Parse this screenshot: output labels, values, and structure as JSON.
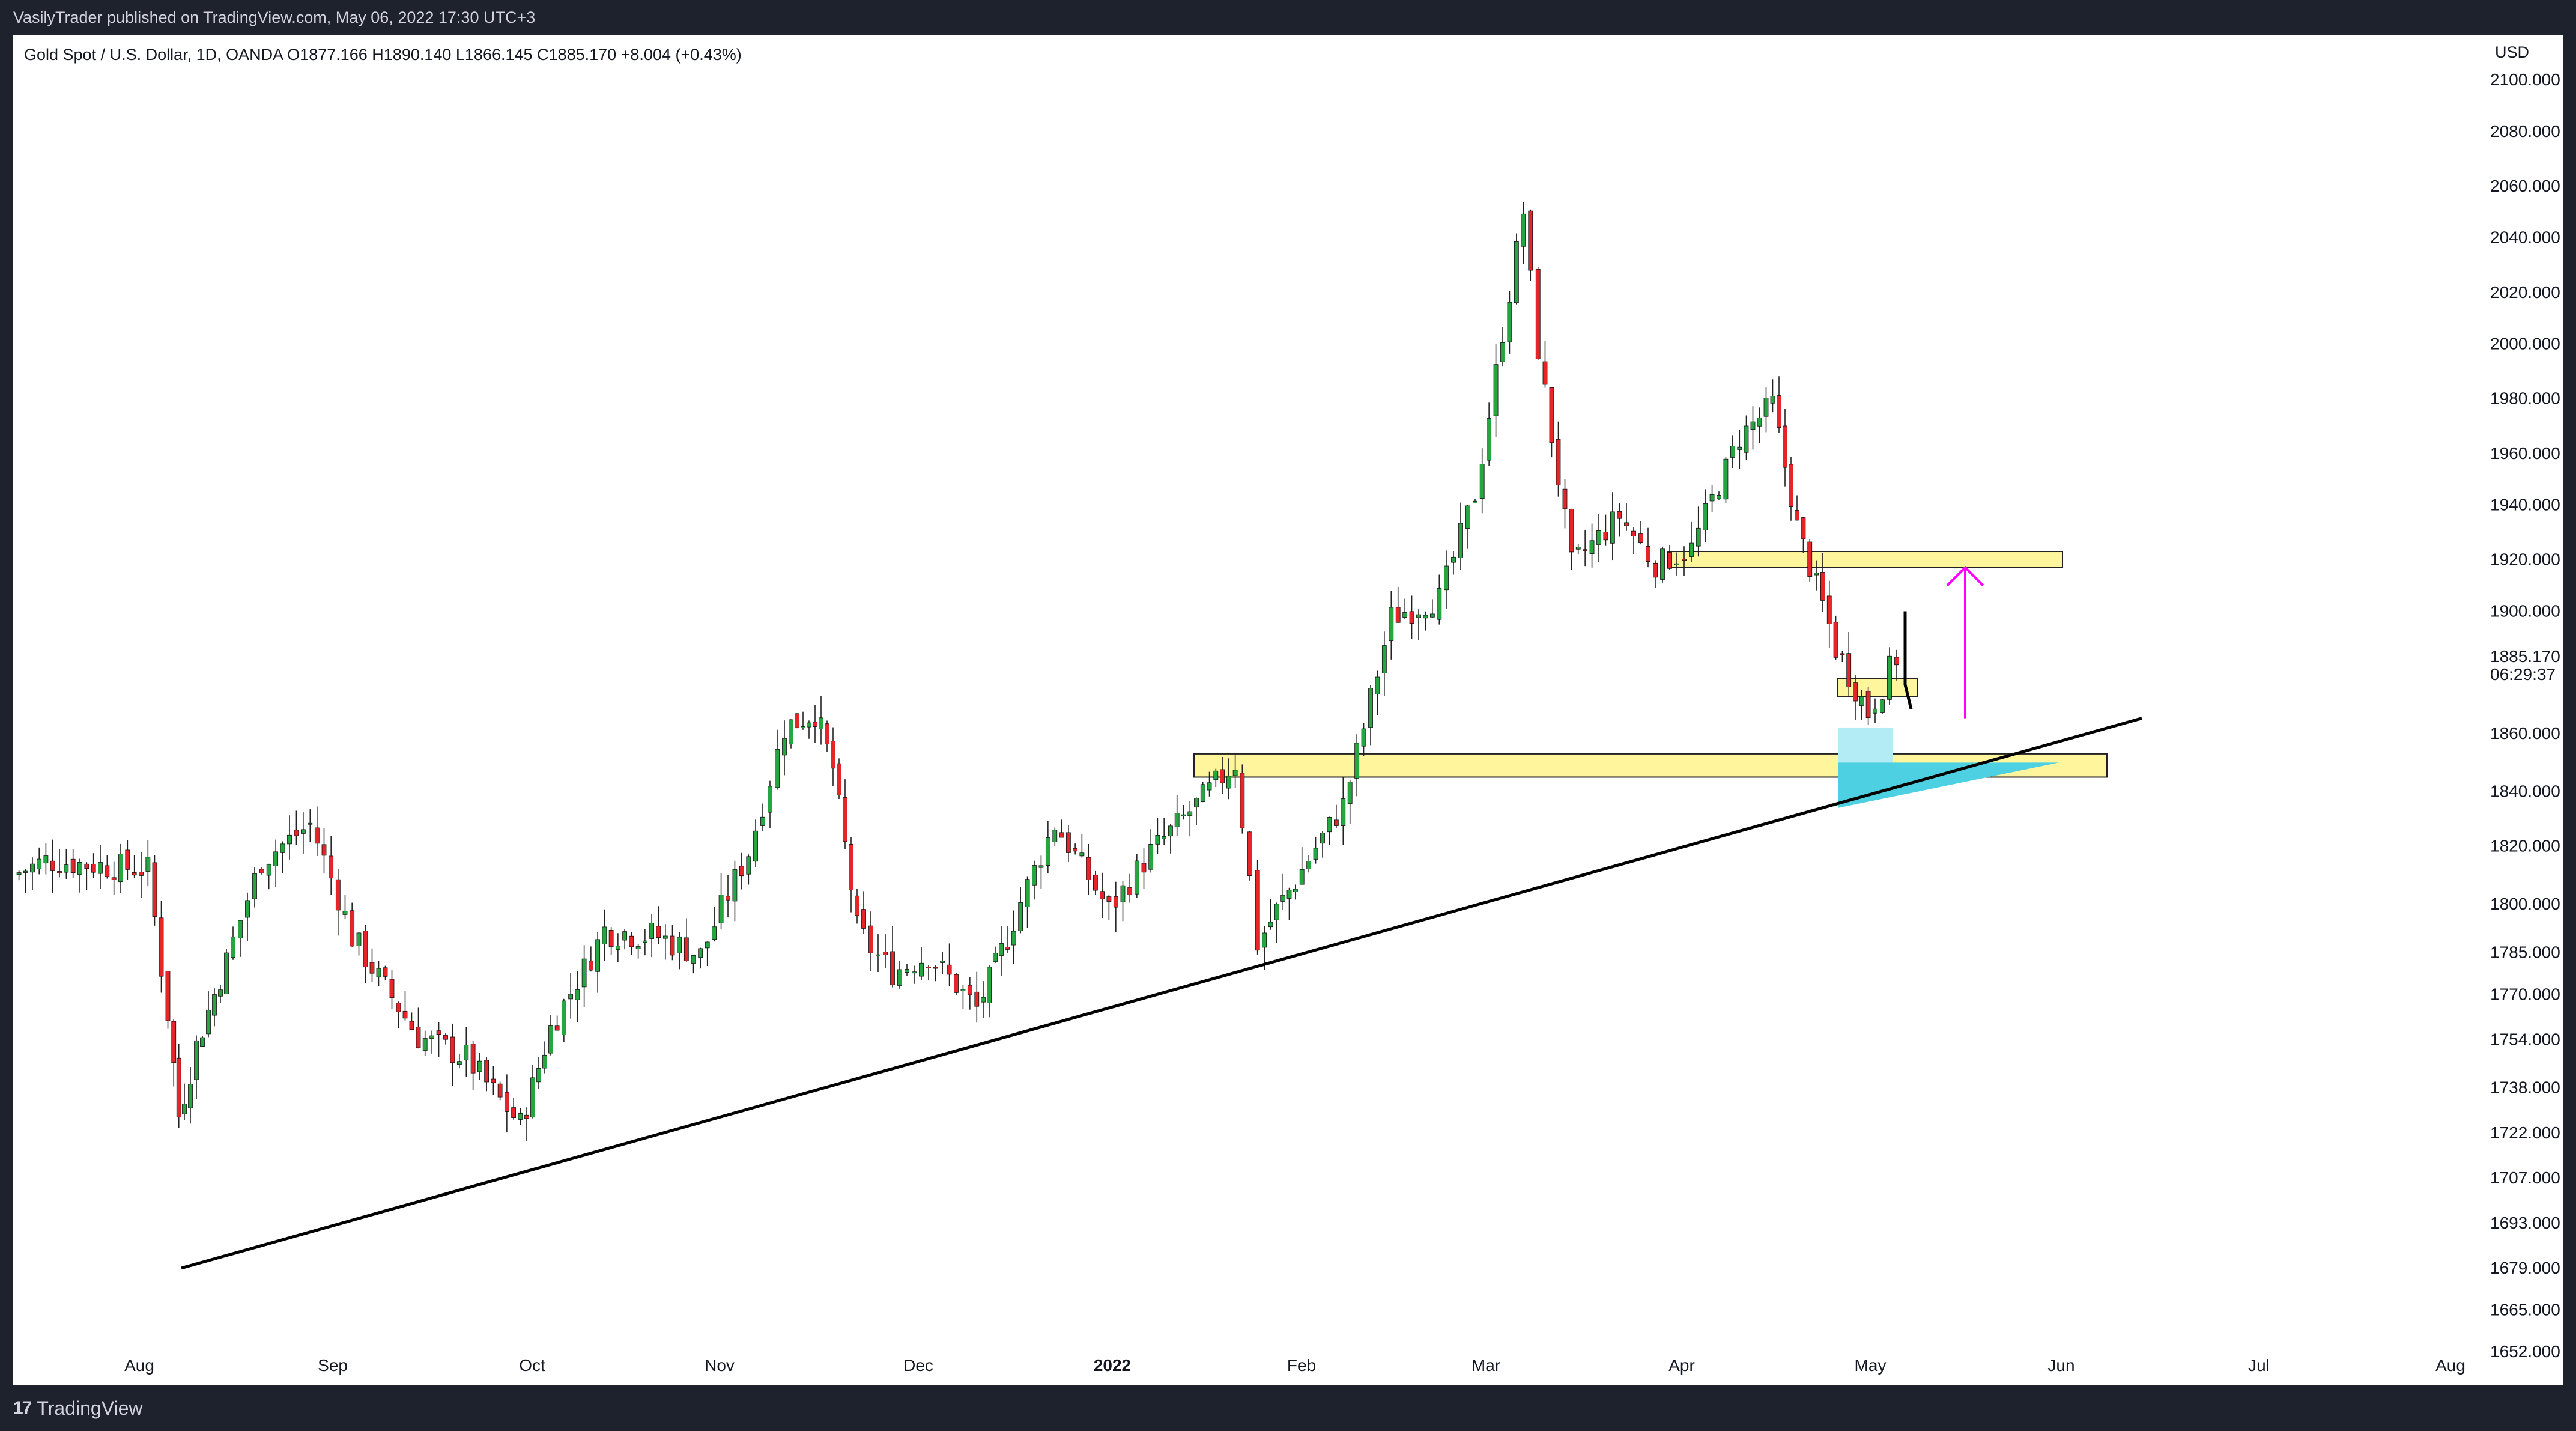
{
  "header": {
    "published_text": "VasilyTrader published on TradingView.com, May 06, 2022 17:30 UTC+3"
  },
  "legend": {
    "symbol_line": "Gold Spot / U.S. Dollar, 1D, OANDA  O1877.166  H1890.140  L1866.145  C1885.170  +8.004 (+0.43%)"
  },
  "price_axis": {
    "currency": "USD",
    "labels": [
      "2100.000",
      "2080.000",
      "2060.000",
      "2040.000",
      "2020.000",
      "2000.000",
      "1980.000",
      "1960.000",
      "1940.000",
      "1920.000",
      "1900.000",
      "1885.170",
      "06:29:37",
      "1860.000",
      "1840.000",
      "1820.000",
      "1800.000",
      "1785.000",
      "1770.000",
      "1754.000",
      "1738.000",
      "1722.000",
      "1707.000",
      "1693.000",
      "1679.000",
      "1665.000",
      "1652.000"
    ]
  },
  "time_axis": {
    "labels": [
      "Aug",
      "Sep",
      "Oct",
      "Nov",
      "Dec",
      "2022",
      "Feb",
      "Mar",
      "Apr",
      "May",
      "Jun",
      "Jul",
      "Aug"
    ]
  },
  "footer": {
    "logo_text": "TradingView",
    "logo_mark": "17"
  },
  "colors": {
    "up": "#26a641",
    "down": "#e5252a",
    "zone_fill": "#fff59d",
    "zone_stroke": "#222222",
    "projection": "#4dd0e1",
    "arrow": "#ff00ff",
    "trendline": "#000000"
  },
  "chart_data": {
    "type": "candlestick",
    "symbol": "Gold Spot / U.S. Dollar",
    "interval": "1D",
    "source": "OANDA",
    "last_bar": {
      "open": 1877.166,
      "high": 1890.14,
      "low": 1866.145,
      "close": 1885.17,
      "change": 8.004,
      "change_pct": 0.43
    },
    "last_price_label": "1885.170",
    "countdown": "06:29:37",
    "y_range": [
      1640,
      2110
    ],
    "y_ticks": [
      2100,
      2080,
      2060,
      2040,
      2020,
      2000,
      1980,
      1960,
      1940,
      1920,
      1900,
      1860,
      1840,
      1820,
      1800,
      1785,
      1770,
      1754,
      1738,
      1722,
      1707,
      1693,
      1679,
      1665,
      1652
    ],
    "x_ticks": [
      "Aug",
      "Sep",
      "Oct",
      "Nov",
      "Dec",
      "2022",
      "Feb",
      "Mar",
      "Apr",
      "May",
      "Jun",
      "Jul",
      "Aug"
    ],
    "anchors": [
      {
        "label": "Jul 01",
        "close": 1810
      },
      {
        "label": "Jul 15",
        "close": 1815
      },
      {
        "label": "Jul 30",
        "close": 1812
      },
      {
        "label": "Aug 06",
        "close": 1763
      },
      {
        "label": "Aug 09",
        "close": 1728
      },
      {
        "label": "Aug 12",
        "close": 1752
      },
      {
        "label": "Aug 20",
        "close": 1782
      },
      {
        "label": "Aug 27",
        "close": 1815
      },
      {
        "label": "Sep 03",
        "close": 1828
      },
      {
        "label": "Sep 10",
        "close": 1790
      },
      {
        "label": "Sep 17",
        "close": 1755
      },
      {
        "label": "Sep 24",
        "close": 1748
      },
      {
        "label": "Sep 29",
        "close": 1725
      },
      {
        "label": "Oct 05",
        "close": 1758
      },
      {
        "label": "Oct 13",
        "close": 1792
      },
      {
        "label": "Oct 22",
        "close": 1790
      },
      {
        "label": "Oct 29",
        "close": 1784
      },
      {
        "label": "Nov 05",
        "close": 1818
      },
      {
        "label": "Nov 12",
        "close": 1862
      },
      {
        "label": "Nov 16",
        "close": 1867
      },
      {
        "label": "Nov 19",
        "close": 1848
      },
      {
        "label": "Nov 23",
        "close": 1792
      },
      {
        "label": "Nov 30",
        "close": 1778
      },
      {
        "label": "Dec 07",
        "close": 1784
      },
      {
        "label": "Dec 15",
        "close": 1765
      },
      {
        "label": "Dec 21",
        "close": 1790
      },
      {
        "label": "Dec 31",
        "close": 1828
      },
      {
        "label": "Jan 07",
        "close": 1798
      },
      {
        "label": "Jan 14",
        "close": 1818
      },
      {
        "label": "Jan 25",
        "close": 1850
      },
      {
        "label": "Jan 28",
        "close": 1788
      },
      {
        "label": "Feb 03",
        "close": 1808
      },
      {
        "label": "Feb 10",
        "close": 1835
      },
      {
        "label": "Feb 17",
        "close": 1898
      },
      {
        "label": "Feb 24",
        "close": 1905
      },
      {
        "label": "Mar 01",
        "close": 1944
      },
      {
        "label": "Mar 08",
        "close": 2050
      },
      {
        "label": "Mar 10",
        "close": 1998
      },
      {
        "label": "Mar 15",
        "close": 1918
      },
      {
        "label": "Mar 22",
        "close": 1936
      },
      {
        "label": "Mar 29",
        "close": 1918
      },
      {
        "label": "Apr 05",
        "close": 1924
      },
      {
        "label": "Apr 12",
        "close": 1966
      },
      {
        "label": "Apr 18",
        "close": 1978
      },
      {
        "label": "Apr 22",
        "close": 1932
      },
      {
        "label": "Apr 28",
        "close": 1888
      },
      {
        "label": "May 03",
        "close": 1867
      },
      {
        "label": "May 06",
        "close": 1885
      }
    ],
    "annotations": [
      {
        "type": "trendline",
        "from": {
          "date": "Aug 09",
          "price": 1679
        },
        "to": {
          "date": "Jun 14",
          "price": 1865
        }
      },
      {
        "type": "zone",
        "name": "upper resistance",
        "from_date": "Mar 31",
        "to_date": "Jun 01",
        "price_top": 1923,
        "price_bottom": 1917
      },
      {
        "type": "zone",
        "name": "support",
        "from_date": "Jan 18",
        "to_date": "Jun 09",
        "price_top": 1853,
        "price_bottom": 1845
      },
      {
        "type": "zone",
        "name": "small entry box",
        "from_date": "Apr 25",
        "to_date": "May 10",
        "price_top": 1878,
        "price_bottom": 1872
      },
      {
        "type": "arrow",
        "direction": "up",
        "date": "May 18",
        "from_price": 1865,
        "to_price": 1917
      }
    ]
  }
}
